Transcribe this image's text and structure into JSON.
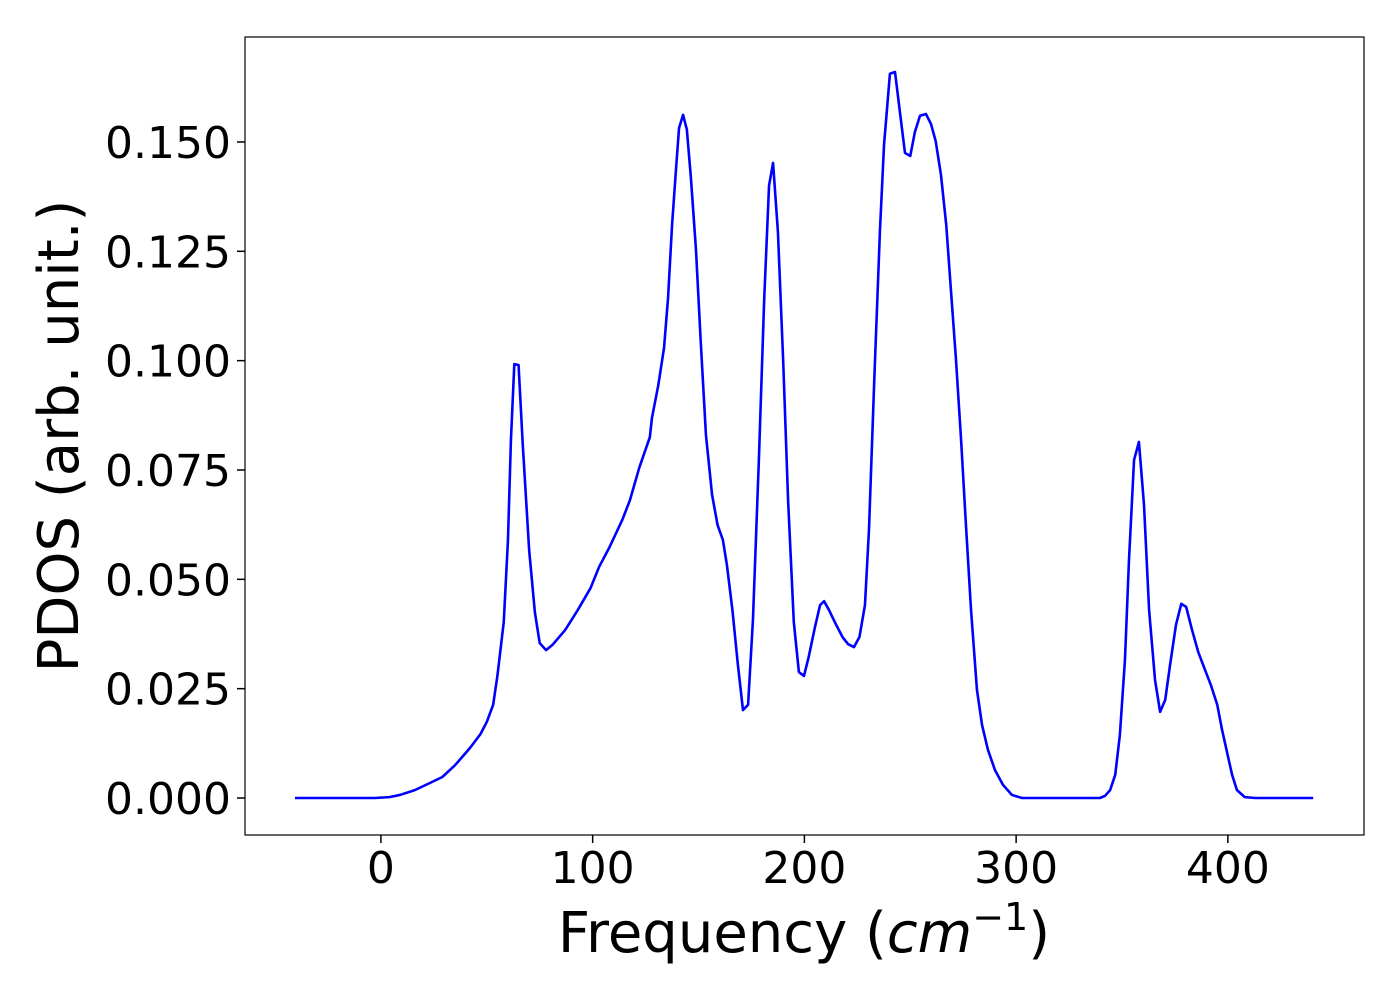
{
  "chart_data": {
    "type": "line",
    "xlabel": [
      "Frequency (",
      "cm",
      "−1",
      ")"
    ],
    "ylabel": "PDOS (arb. unit.)",
    "color": "#0000ff",
    "xlim": [
      -64.2,
      464.3
    ],
    "ylim": [
      -0.00846,
      0.174
    ],
    "xticks": [
      0,
      100,
      200,
      300,
      400
    ],
    "yticks": [
      {
        "value": 0,
        "label": "0.000"
      },
      {
        "value": 0.025,
        "label": "0.025"
      },
      {
        "value": 0.05,
        "label": "0.050"
      },
      {
        "value": 0.075,
        "label": "0.075"
      },
      {
        "value": 0.1,
        "label": "0.100"
      },
      {
        "value": 0.125,
        "label": "0.125"
      },
      {
        "value": 0.15,
        "label": "0.150"
      }
    ],
    "x": [
      -40.6,
      -2.8,
      4,
      9,
      16,
      23,
      29,
      35,
      42,
      47,
      50,
      53,
      55,
      58,
      60,
      61.4,
      63,
      65,
      67,
      70,
      72.7,
      75,
      78,
      81,
      87,
      93,
      99,
      103,
      108,
      114,
      117.6,
      122,
      127,
      128,
      131,
      133.7,
      135.6,
      137.5,
      139.4,
      140.8,
      142.7,
      144.5,
      146.4,
      148.8,
      151,
      153.5,
      156.4,
      159,
      161.5,
      163.4,
      166,
      168.6,
      171,
      173.4,
      175.7,
      178.5,
      181,
      183.3,
      185.2,
      187.5,
      190,
      192.3,
      195,
      197.4,
      199.8,
      202,
      205,
      207.4,
      209.3,
      211.6,
      215,
      218,
      220.6,
      223.4,
      226,
      228.6,
      230.5,
      233,
      235.7,
      237.6,
      240.4,
      242.8,
      245,
      247.5,
      250,
      252.2,
      254.6,
      257.4,
      259.8,
      262,
      264.5,
      267,
      269.2,
      271.6,
      274,
      276.3,
      278.7,
      281.5,
      283.9,
      286.7,
      290,
      293.8,
      298,
      302.8,
      339.6,
      342,
      344.4,
      346.8,
      349,
      351.4,
      353.3,
      355.7,
      358,
      360.4,
      362.8,
      365.6,
      368,
      370.4,
      372.7,
      375.5,
      378,
      380.3,
      383.1,
      386,
      389.2,
      392,
      395,
      397.3,
      399.6,
      402,
      404.3,
      408,
      413,
      440.3
    ],
    "values": [
      0,
      0,
      0.0002,
      0.0007,
      0.0018,
      0.0034,
      0.0048,
      0.0075,
      0.0114,
      0.0146,
      0.0174,
      0.0213,
      0.0279,
      0.0402,
      0.059,
      0.0819,
      0.0992,
      0.099,
      0.0807,
      0.0567,
      0.0425,
      0.0354,
      0.0338,
      0.035,
      0.0384,
      0.043,
      0.048,
      0.0528,
      0.0574,
      0.0636,
      0.0681,
      0.0755,
      0.0825,
      0.0869,
      0.0944,
      0.1029,
      0.1143,
      0.131,
      0.144,
      0.1532,
      0.1562,
      0.1528,
      0.1418,
      0.1253,
      0.1047,
      0.083,
      0.0693,
      0.0624,
      0.059,
      0.0533,
      0.043,
      0.0304,
      0.0201,
      0.0213,
      0.0407,
      0.0773,
      0.1139,
      0.14,
      0.1452,
      0.1294,
      0.0997,
      0.0681,
      0.0402,
      0.0288,
      0.0279,
      0.0322,
      0.0391,
      0.0441,
      0.045,
      0.043,
      0.0396,
      0.0368,
      0.0352,
      0.0345,
      0.0368,
      0.0441,
      0.0613,
      0.0956,
      0.1299,
      0.1493,
      0.1656,
      0.166,
      0.1573,
      0.1475,
      0.1468,
      0.1523,
      0.156,
      0.1564,
      0.1541,
      0.1502,
      0.1425,
      0.131,
      0.1162,
      0.1002,
      0.0819,
      0.0624,
      0.043,
      0.0247,
      0.0167,
      0.011,
      0.0064,
      0.003,
      0.0007,
      0,
      0,
      0.0005,
      0.0018,
      0.0053,
      0.0144,
      0.0316,
      0.0544,
      0.0773,
      0.0814,
      0.067,
      0.043,
      0.027,
      0.0197,
      0.0224,
      0.0304,
      0.0396,
      0.0444,
      0.0437,
      0.0384,
      0.0334,
      0.0293,
      0.0258,
      0.0213,
      0.0155,
      0.0105,
      0.0053,
      0.0018,
      0.0002,
      0,
      0
    ]
  }
}
